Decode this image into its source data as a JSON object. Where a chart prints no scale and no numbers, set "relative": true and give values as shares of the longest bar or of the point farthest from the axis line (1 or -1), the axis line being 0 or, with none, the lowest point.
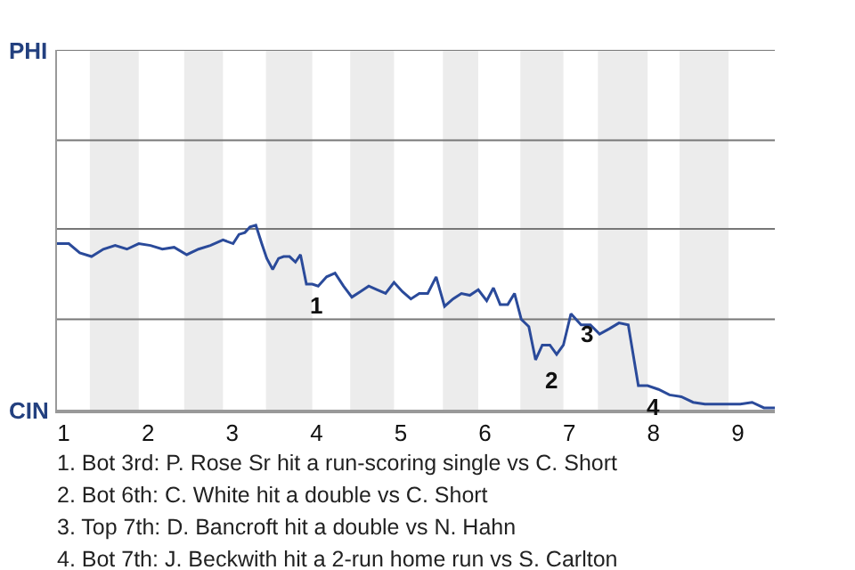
{
  "chart_data": {
    "type": "line",
    "relative": true,
    "x": [
      0.92,
      1.06,
      1.19,
      1.33,
      1.47,
      1.61,
      1.75,
      1.89,
      2.03,
      2.17,
      2.31,
      2.46,
      2.6,
      2.74,
      2.89,
      3.01,
      3.08,
      3.15,
      3.21,
      3.28,
      3.35,
      3.41,
      3.48,
      3.55,
      3.61,
      3.68,
      3.75,
      3.81,
      3.88,
      3.95,
      4.02,
      4.12,
      4.22,
      4.32,
      4.42,
      4.52,
      4.62,
      4.72,
      4.82,
      4.92,
      5.02,
      5.12,
      5.22,
      5.32,
      5.42,
      5.52,
      5.62,
      5.72,
      5.82,
      5.92,
      6.02,
      6.1,
      6.18,
      6.27,
      6.35,
      6.43,
      6.52,
      6.6,
      6.68,
      6.77,
      6.85,
      6.93,
      7.02,
      7.14,
      7.25,
      7.36,
      7.48,
      7.59,
      7.7,
      7.82,
      7.93,
      8.06,
      8.19,
      8.33,
      8.47,
      8.61,
      8.75,
      8.89,
      9.03,
      9.17,
      9.31,
      9.44
    ],
    "series": [
      {
        "color": "#2a4a9a",
        "values": [
          0.9,
          0.9,
          0.85,
          0.83,
          0.87,
          0.89,
          0.87,
          0.9,
          0.89,
          0.87,
          0.88,
          0.84,
          0.87,
          0.89,
          0.92,
          0.9,
          0.95,
          0.96,
          0.99,
          1,
          0.9,
          0.82,
          0.76,
          0.82,
          0.83,
          0.83,
          0.8,
          0.84,
          0.68,
          0.68,
          0.67,
          0.72,
          0.74,
          0.67,
          0.61,
          0.64,
          0.67,
          0.65,
          0.63,
          0.69,
          0.64,
          0.6,
          0.63,
          0.63,
          0.72,
          0.56,
          0.6,
          0.63,
          0.62,
          0.65,
          0.59,
          0.66,
          0.57,
          0.57,
          0.63,
          0.49,
          0.45,
          0.27,
          0.35,
          0.35,
          0.3,
          0.35,
          0.52,
          0.46,
          0.46,
          0.41,
          0.44,
          0.47,
          0.46,
          0.13,
          0.13,
          0.11,
          0.08,
          0.07,
          0.04,
          0.03,
          0.03,
          0.03,
          0.03,
          0.04,
          0.01,
          0.01
        ]
      }
    ],
    "xlim": [
      0.92,
      9.44
    ],
    "xticks": [
      1,
      2,
      3,
      4,
      5,
      6,
      7,
      8,
      9
    ],
    "ref_lines": [
      {
        "axis": "y",
        "value": 0.49,
        "color": "#777777"
      },
      {
        "axis": "y",
        "value": 0.98,
        "color": "#777777"
      },
      {
        "axis": "y",
        "value": 1.46,
        "color": "#777777"
      },
      {
        "axis": "y",
        "value": 1.95,
        "color": "#777777"
      }
    ],
    "bands": [
      {
        "axis": "x",
        "from": 1.31,
        "to": 1.89,
        "color": "#ececec"
      },
      {
        "axis": "x",
        "from": 2.43,
        "to": 2.89,
        "color": "#ececec"
      },
      {
        "axis": "x",
        "from": 3.4,
        "to": 3.95,
        "color": "#ececec"
      },
      {
        "axis": "x",
        "from": 4.4,
        "to": 4.92,
        "color": "#ececec"
      },
      {
        "axis": "x",
        "from": 5.5,
        "to": 5.92,
        "color": "#ececec"
      },
      {
        "axis": "x",
        "from": 6.42,
        "to": 6.93,
        "color": "#ececec"
      },
      {
        "axis": "x",
        "from": 7.34,
        "to": 7.93,
        "color": "#ececec"
      },
      {
        "axis": "x",
        "from": 8.31,
        "to": 8.89,
        "color": "#ececec"
      }
    ],
    "annotations": [
      "PHI",
      "CIN",
      {
        "text": "1",
        "x": 3.81,
        "y": 0.68
      },
      {
        "text": "2",
        "x": 6.6,
        "y": 0.27
      },
      {
        "text": "3",
        "x": 7.02,
        "y": 0.52
      },
      {
        "text": "4",
        "x": 7.82,
        "y": 0.13
      },
      "1. Bot 3rd: P. Rose Sr hit a run-scoring single vs C. Short",
      "2. Bot 6th: C. White hit a double vs C. Short",
      "3. Top 7th: D. Bancroft hit a double vs N. Hahn",
      "4. Bot 7th: J. Beckwith hit a 2-run home run vs S. Carlton"
    ]
  }
}
